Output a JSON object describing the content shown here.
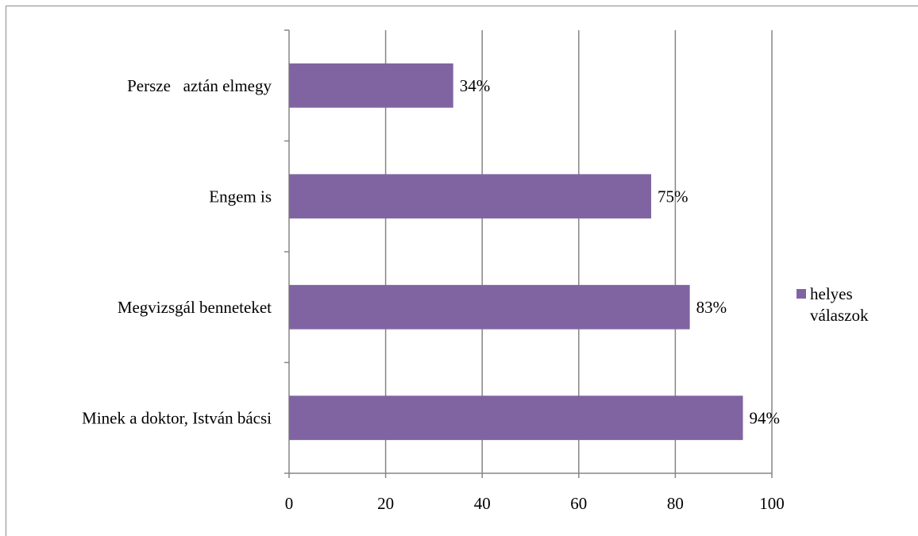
{
  "chart_data": {
    "type": "bar",
    "orientation": "horizontal",
    "categories": [
      "Persze   aztán elmegy",
      "Engem is",
      "Megvizsgál benneteket",
      "Minek a doktor, István bácsi"
    ],
    "series": [
      {
        "name": "helyes\nválaszok",
        "values": [
          34,
          75,
          83,
          94
        ],
        "labels": [
          "34%",
          "75%",
          "83%",
          "94%"
        ],
        "color": "#8064a2"
      }
    ],
    "xlim": [
      0,
      100
    ],
    "x_ticks": [
      0,
      20,
      40,
      60,
      80,
      100
    ],
    "x_tick_labels": [
      "0",
      "20",
      "40",
      "60",
      "80",
      "100"
    ],
    "grid": "vertical",
    "legend_position": "right",
    "gridline_color": "#868686"
  }
}
